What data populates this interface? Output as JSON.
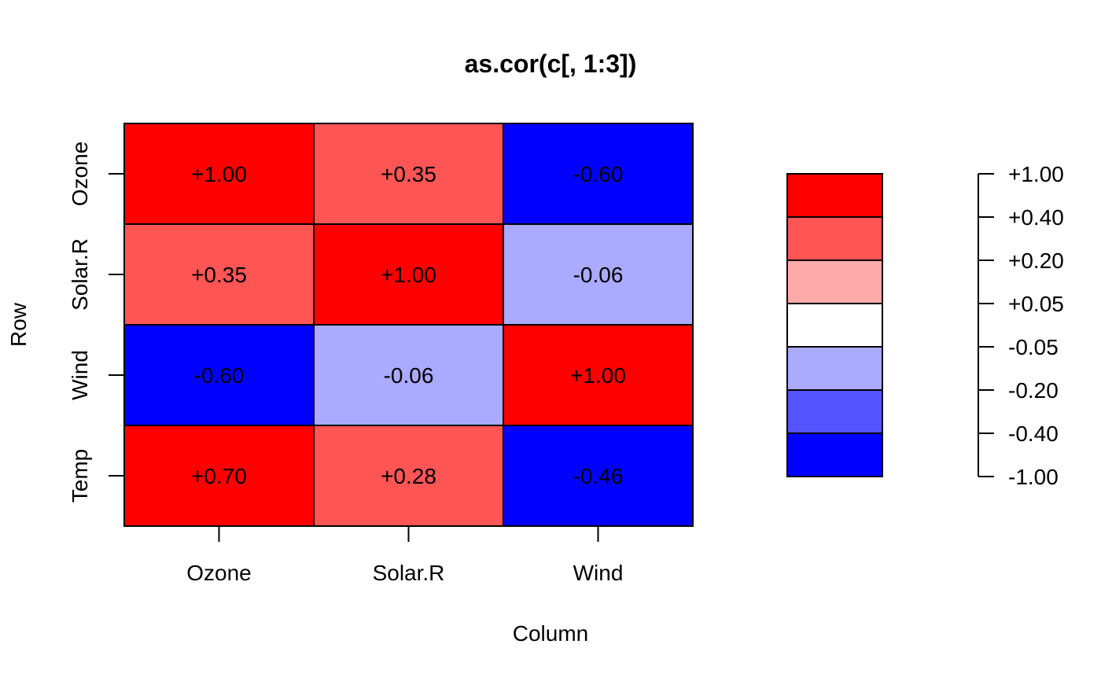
{
  "chart_data": {
    "type": "heatmap",
    "title": "as.cor(c[, 1:3])",
    "xlabel": "Column",
    "ylabel": "Row",
    "columns": [
      "Ozone",
      "Solar.R",
      "Wind"
    ],
    "rows": [
      "Ozone",
      "Solar.R",
      "Wind",
      "Temp"
    ],
    "values": [
      [
        1.0,
        0.35,
        -0.6
      ],
      [
        0.35,
        1.0,
        -0.06
      ],
      [
        -0.6,
        -0.06,
        1.0
      ],
      [
        0.7,
        0.28,
        -0.46
      ]
    ],
    "cell_labels": [
      [
        "+1.00",
        "+0.35",
        "-0.60"
      ],
      [
        "+0.35",
        "+1.00",
        "-0.06"
      ],
      [
        "-0.60",
        "-0.06",
        "+1.00"
      ],
      [
        "+0.70",
        "+0.28",
        "-0.46"
      ]
    ],
    "legend": {
      "breaks": [
        -1.0,
        -0.4,
        -0.2,
        -0.05,
        0.05,
        0.2,
        0.4,
        1.0
      ],
      "tick_labels": [
        "+1.00",
        "+0.40",
        "+0.20",
        "+0.05",
        "-0.05",
        "-0.20",
        "-0.40",
        "-1.00"
      ],
      "colors_top_to_bottom": [
        "#FF0000",
        "#FF5555",
        "#FFAAAA",
        "#FFFFFF",
        "#AAAAFF",
        "#5555FF",
        "#0000FF"
      ]
    }
  }
}
